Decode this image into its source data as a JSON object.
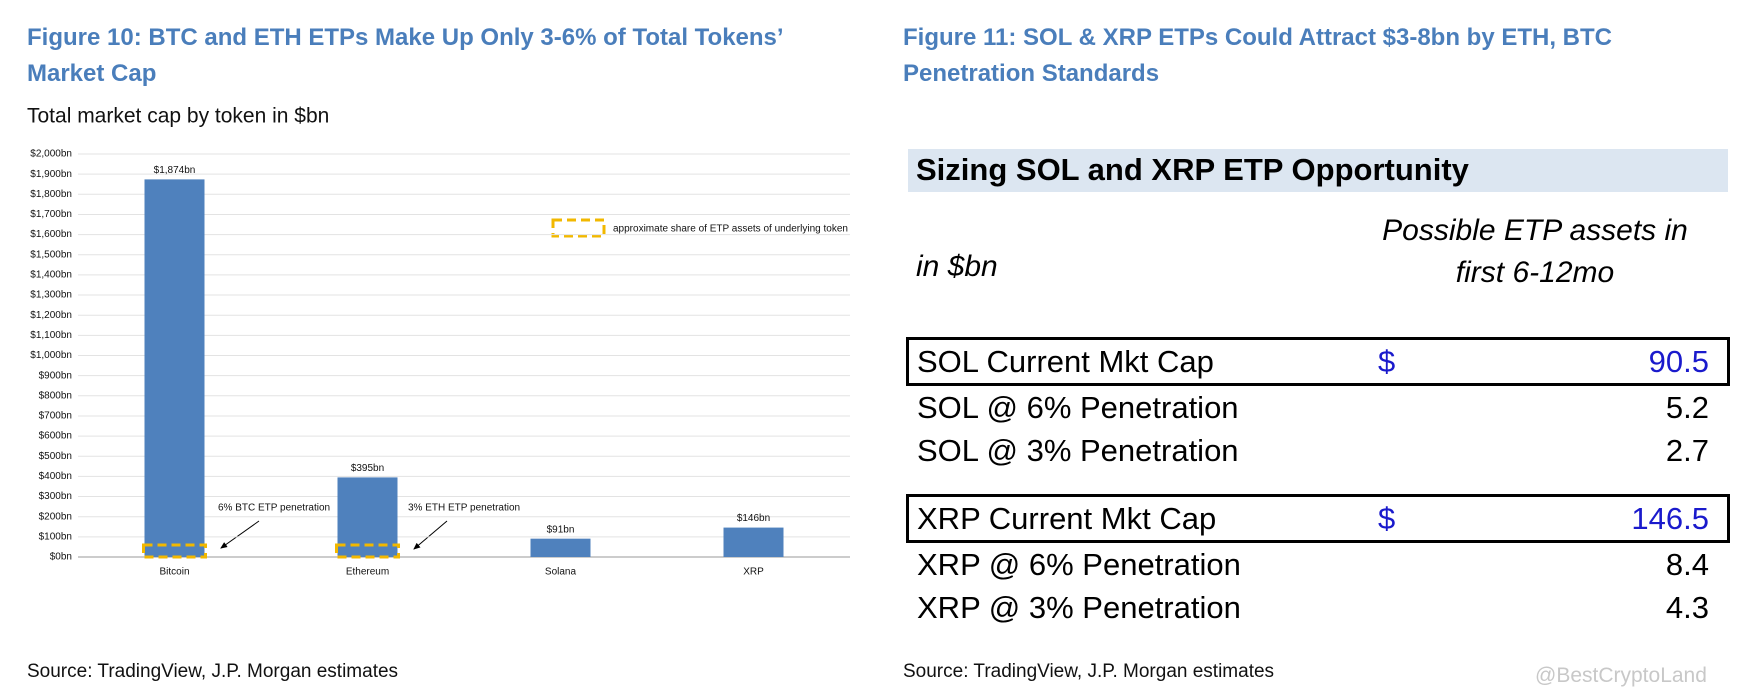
{
  "figure10": {
    "title": "Figure 10: BTC and ETH ETPs Make Up Only 3-6% of Total Tokens’ Market Cap",
    "source": "Source: TradingView, J.P. Morgan estimates"
  },
  "chart_data": {
    "type": "bar",
    "title": "Total market cap by token in $bn",
    "categories": [
      "Bitcoin",
      "Ethereum",
      "Solana",
      "XRP"
    ],
    "values": [
      1874,
      395,
      91,
      146
    ],
    "value_labels": [
      "$1,874bn",
      "$395bn",
      "$91bn",
      "$146bn"
    ],
    "color": "#4f81bd",
    "ylim": [
      0,
      2000
    ],
    "yticks": [
      {
        "value": 0,
        "label": "$0bn"
      },
      {
        "value": 100,
        "label": "$100bn"
      },
      {
        "value": 200,
        "label": "$200bn"
      },
      {
        "value": 300,
        "label": "$300bn"
      },
      {
        "value": 400,
        "label": "$400bn"
      },
      {
        "value": 500,
        "label": "$500bn"
      },
      {
        "value": 600,
        "label": "$600bn"
      },
      {
        "value": 700,
        "label": "$700bn"
      },
      {
        "value": 800,
        "label": "$800bn"
      },
      {
        "value": 900,
        "label": "$900bn"
      },
      {
        "value": 1000,
        "label": "$1,000bn"
      },
      {
        "value": 1100,
        "label": "$1,100bn"
      },
      {
        "value": 1200,
        "label": "$1,200bn"
      },
      {
        "value": 1300,
        "label": "$1,300bn"
      },
      {
        "value": 1400,
        "label": "$1,400bn"
      },
      {
        "value": 1500,
        "label": "$1,500bn"
      },
      {
        "value": 1600,
        "label": "$1,600bn"
      },
      {
        "value": 1700,
        "label": "$1,700bn"
      },
      {
        "value": 1800,
        "label": "$1,800bn"
      },
      {
        "value": 1900,
        "label": "$1,900bn"
      },
      {
        "value": 2000,
        "label": "$2,000bn"
      }
    ],
    "grid": true,
    "legend": "approximate share of ETP assets of underlying token",
    "annotations": [
      "6% BTC ETP penetration",
      "3% ETH ETP penetration"
    ]
  },
  "figure11": {
    "title": "Figure 11: SOL & XRP ETPs Could Attract $3-8bn by ETH, BTC Penetration Standards",
    "table": {
      "title": "Sizing SOL and XRP ETP Opportunity",
      "unit": "in $bn",
      "column_header": [
        "Possible ETP assets in",
        "first 6-12mo"
      ],
      "groups": [
        {
          "rows": [
            {
              "label": "SOL Current Mkt Cap",
              "currency": "$",
              "value": 90.5
            },
            {
              "label": "SOL @ 6% Penetration",
              "value": 5.2
            },
            {
              "label": "SOL @ 3% Penetration",
              "value": 2.7
            }
          ]
        },
        {
          "rows": [
            {
              "label": "XRP Current Mkt Cap",
              "currency": "$",
              "value": 146.5
            },
            {
              "label": "XRP @ 6% Penetration",
              "value": 8.4
            },
            {
              "label": "XRP @ 3% Penetration",
              "value": 4.3
            }
          ]
        }
      ]
    },
    "source": "Source: TradingView, J.P. Morgan estimates"
  },
  "watermark": "@BestCryptoLand"
}
